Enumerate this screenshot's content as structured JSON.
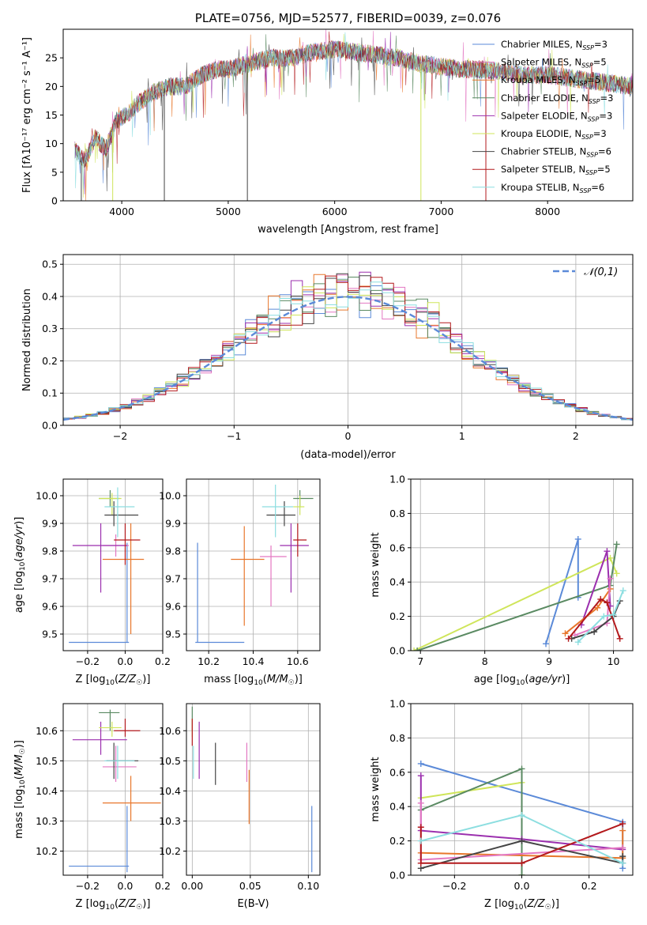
{
  "chart_data": [
    {
      "id": "spectrum",
      "type": "line",
      "title": "PLATE=0756, MJD=52577, FIBERID=0039, z=0.076",
      "xlabel": "wavelength [Angstrom, rest frame]",
      "ylabel": "Flux [fλ10⁻¹⁷ erg cm⁻² s⁻¹ A⁻¹]",
      "xlim": [
        3450,
        8800
      ],
      "ylim": [
        0,
        30
      ],
      "x_ticks": [
        "4000",
        "5000",
        "6000",
        "7000",
        "8000"
      ],
      "y_ticks": [
        "0",
        "5",
        "10",
        "15",
        "20",
        "25"
      ],
      "grid": false,
      "legend_position": "right",
      "series": [
        {
          "name": "Chabrier MILES, N_SSP=3",
          "color": "#5b8ad8"
        },
        {
          "name": "Salpeter MILES, N_SSP=5",
          "color": "#e377c2"
        },
        {
          "name": "Kroupa MILES, N_SSP=5",
          "color": "#e8772c"
        },
        {
          "name": "Chabrier ELODIE, N_SSP=3",
          "color": "#5a8a62"
        },
        {
          "name": "Salpeter ELODIE, N_SSP=3",
          "color": "#9b2fae"
        },
        {
          "name": "Kroupa ELODIE, N_SSP=3",
          "color": "#cfe55a"
        },
        {
          "name": "Chabrier STELIB, N_SSP=6",
          "color": "#444444"
        },
        {
          "name": "Salpeter STELIB, N_SSP=5",
          "color": "#b3191c"
        },
        {
          "name": "Kroupa STELIB, N_SSP=6",
          "color": "#8cdee0"
        }
      ],
      "continuum": [
        [
          3550,
          9
        ],
        [
          3650,
          7
        ],
        [
          3750,
          11
        ],
        [
          3850,
          9
        ],
        [
          3950,
          14
        ],
        [
          4050,
          15
        ],
        [
          4150,
          17
        ],
        [
          4300,
          19
        ],
        [
          4450,
          20
        ],
        [
          4600,
          20
        ],
        [
          4750,
          22
        ],
        [
          4900,
          23
        ],
        [
          5000,
          23
        ],
        [
          5200,
          24
        ],
        [
          5400,
          25
        ],
        [
          5600,
          25
        ],
        [
          5800,
          26
        ],
        [
          6000,
          26.5
        ],
        [
          6200,
          26
        ],
        [
          6400,
          25.5
        ],
        [
          6600,
          25
        ],
        [
          6800,
          24
        ],
        [
          7000,
          23.5
        ],
        [
          7200,
          23
        ],
        [
          7400,
          23
        ],
        [
          7600,
          22.5
        ],
        [
          7800,
          22
        ],
        [
          8000,
          22
        ],
        [
          8200,
          21.5
        ],
        [
          8400,
          21
        ],
        [
          8600,
          20.5
        ],
        [
          8800,
          20
        ]
      ]
    },
    {
      "id": "residuals",
      "type": "bar",
      "xlabel": "(data-model)/error",
      "ylabel": "Normed distribution",
      "xlim": [
        -2.5,
        2.5
      ],
      "ylim": [
        0,
        0.53
      ],
      "x_ticks": [
        "−2",
        "−1",
        "0",
        "1",
        "2"
      ],
      "y_ticks": [
        "0.0",
        "0.1",
        "0.2",
        "0.3",
        "0.4",
        "0.5"
      ],
      "grid": true,
      "legend_position": "top-right",
      "reference_label": "𝒩(0,1)",
      "reference_color": "#5b8ad8"
    },
    {
      "id": "age_vs_Z",
      "type": "scatter",
      "xlabel": "Z [log₁₀(Z/Z☉)]",
      "ylabel": "age  [log₁₀(age/yr)]",
      "xlim": [
        -0.33,
        0.2
      ],
      "ylim": [
        9.44,
        10.06
      ],
      "x_ticks": [
        "−0.2",
        "0.0",
        "0.2"
      ],
      "y_ticks": [
        "9.5",
        "9.6",
        "9.7",
        "9.8",
        "9.9",
        "10.0"
      ],
      "points": [
        {
          "c": "#5b8ad8",
          "x": 0.01,
          "y": 9.47,
          "xl": -0.3,
          "xh": 0.02,
          "yl": 9.47,
          "yh": 9.83
        },
        {
          "c": "#e377c2",
          "x": -0.05,
          "y": 9.82,
          "xl": -0.12,
          "xh": 0.02,
          "yl": 9.78,
          "yh": 9.86
        },
        {
          "c": "#e8772c",
          "x": 0.03,
          "y": 9.77,
          "xl": -0.12,
          "xh": 0.1,
          "yl": 9.5,
          "yh": 9.9
        },
        {
          "c": "#5a8a62",
          "x": -0.08,
          "y": 9.99,
          "xl": -0.14,
          "xh": -0.03,
          "yl": 9.96,
          "yh": 10.02
        },
        {
          "c": "#9b2fae",
          "x": -0.13,
          "y": 9.82,
          "xl": -0.28,
          "xh": 0.01,
          "yl": 9.65,
          "yh": 9.9
        },
        {
          "c": "#cfe55a",
          "x": -0.07,
          "y": 9.99,
          "xl": -0.14,
          "xh": -0.02,
          "yl": 9.93,
          "yh": 10.01
        },
        {
          "c": "#444444",
          "x": -0.06,
          "y": 9.93,
          "xl": -0.11,
          "xh": 0.07,
          "yl": 9.89,
          "yh": 9.98
        },
        {
          "c": "#b3191c",
          "x": 0.0,
          "y": 9.84,
          "xl": -0.06,
          "xh": 0.08,
          "yl": 9.75,
          "yh": 9.9
        },
        {
          "c": "#8cdee0",
          "x": -0.04,
          "y": 9.96,
          "xl": -0.11,
          "xh": 0.05,
          "yl": 9.85,
          "yh": 10.03
        }
      ]
    },
    {
      "id": "age_vs_mass",
      "type": "scatter",
      "xlabel": "mass [log₁₀(M/M☉)]",
      "ylabel": "",
      "xlim": [
        10.1,
        10.7
      ],
      "ylim": [
        9.44,
        10.06
      ],
      "x_ticks": [
        "10.2",
        "10.4",
        "10.6"
      ],
      "y_ticks": [
        "9.5",
        "9.6",
        "9.7",
        "9.8",
        "9.9",
        "10.0"
      ],
      "points": [
        {
          "c": "#5b8ad8",
          "x": 10.15,
          "y": 9.47,
          "xl": 10.14,
          "xh": 10.36,
          "yl": 9.47,
          "yh": 9.83
        },
        {
          "c": "#e377c2",
          "x": 10.48,
          "y": 9.78,
          "xl": 10.43,
          "xh": 10.55,
          "yl": 9.6,
          "yh": 9.82
        },
        {
          "c": "#e8772c",
          "x": 10.36,
          "y": 9.77,
          "xl": 10.3,
          "xh": 10.45,
          "yl": 9.53,
          "yh": 9.89
        },
        {
          "c": "#5a8a62",
          "x": 10.61,
          "y": 9.99,
          "xl": 10.58,
          "xh": 10.67,
          "yl": 9.96,
          "yh": 10.02
        },
        {
          "c": "#9b2fae",
          "x": 10.57,
          "y": 9.82,
          "xl": 10.52,
          "xh": 10.65,
          "yl": 9.65,
          "yh": 9.9
        },
        {
          "c": "#cfe55a",
          "x": 10.61,
          "y": 9.96,
          "xl": 10.58,
          "xh": 10.63,
          "yl": 9.93,
          "yh": 10.0
        },
        {
          "c": "#444444",
          "x": 10.54,
          "y": 9.93,
          "xl": 10.46,
          "xh": 10.59,
          "yl": 9.89,
          "yh": 9.98
        },
        {
          "c": "#b3191c",
          "x": 10.6,
          "y": 9.84,
          "xl": 10.58,
          "xh": 10.64,
          "yl": 9.78,
          "yh": 9.9
        },
        {
          "c": "#8cdee0",
          "x": 10.5,
          "y": 9.96,
          "xl": 10.44,
          "xh": 10.58,
          "yl": 9.85,
          "yh": 10.04
        }
      ]
    },
    {
      "id": "weight_vs_age",
      "type": "line",
      "xlabel": "age  [log₁₀(age/yr)]",
      "ylabel": "mass weight",
      "xlim": [
        6.85,
        10.3
      ],
      "ylim": [
        0,
        1
      ],
      "x_ticks": [
        "7",
        "8",
        "9",
        "10"
      ],
      "y_ticks": [
        "0.0",
        "0.2",
        "0.4",
        "0.6",
        "0.8",
        "1.0"
      ],
      "grid": true,
      "series": [
        {
          "c": "#5b8ad8",
          "x": [
            8.95,
            9.45,
            9.45
          ],
          "y": [
            0.04,
            0.65,
            0.31
          ]
        },
        {
          "c": "#cfe55a",
          "x": [
            6.9,
            9.95,
            10.05
          ],
          "y": [
            0.0,
            0.54,
            0.45
          ]
        },
        {
          "c": "#5a8a62",
          "x": [
            6.95,
            9.95,
            10.05
          ],
          "y": [
            0.0,
            0.38,
            0.62
          ]
        },
        {
          "c": "#9b2fae",
          "x": [
            9.5,
            9.9,
            9.95
          ],
          "y": [
            0.15,
            0.58,
            0.26
          ]
        },
        {
          "c": "#e8772c",
          "x": [
            9.25,
            9.75,
            9.95
          ],
          "y": [
            0.1,
            0.25,
            0.36
          ]
        },
        {
          "c": "#e377c2",
          "x": [
            9.4,
            9.9,
            9.95
          ],
          "y": [
            0.09,
            0.16,
            0.42
          ]
        },
        {
          "c": "#444444",
          "x": [
            9.35,
            9.7,
            10.0,
            10.1
          ],
          "y": [
            0.07,
            0.11,
            0.2,
            0.29
          ]
        },
        {
          "c": "#b3191c",
          "x": [
            9.3,
            9.8,
            9.9,
            10.1
          ],
          "y": [
            0.07,
            0.3,
            0.28,
            0.07
          ]
        },
        {
          "c": "#8cdee0",
          "x": [
            9.45,
            9.85,
            10.0,
            10.15
          ],
          "y": [
            0.05,
            0.2,
            0.21,
            0.35
          ]
        }
      ]
    },
    {
      "id": "mass_vs_Z",
      "type": "scatter",
      "xlabel": "Z [log₁₀(Z/Z☉)]",
      "ylabel": "mass [log₁₀(M/M☉)]",
      "xlim": [
        -0.33,
        0.2
      ],
      "ylim": [
        10.12,
        10.69
      ],
      "x_ticks": [
        "−0.2",
        "0.0",
        "0.2"
      ],
      "y_ticks": [
        "10.2",
        "10.3",
        "10.4",
        "10.5",
        "10.6"
      ],
      "points": [
        {
          "c": "#5b8ad8",
          "x": 0.01,
          "y": 10.15,
          "xl": -0.3,
          "xh": 0.02,
          "yl": 10.13,
          "yh": 10.35
        },
        {
          "c": "#e377c2",
          "x": -0.05,
          "y": 10.48,
          "xl": -0.12,
          "xh": 0.06,
          "yl": 10.43,
          "yh": 10.55
        },
        {
          "c": "#e8772c",
          "x": 0.03,
          "y": 10.36,
          "xl": -0.12,
          "xh": 0.19,
          "yl": 10.3,
          "yh": 10.45
        },
        {
          "c": "#5a8a62",
          "x": -0.08,
          "y": 10.66,
          "xl": -0.14,
          "xh": -0.03,
          "yl": 10.6,
          "yh": 10.67
        },
        {
          "c": "#9b2fae",
          "x": -0.13,
          "y": 10.57,
          "xl": -0.28,
          "xh": 0.01,
          "yl": 10.52,
          "yh": 10.63
        },
        {
          "c": "#cfe55a",
          "x": -0.07,
          "y": 10.61,
          "xl": -0.14,
          "xh": -0.02,
          "yl": 10.58,
          "yh": 10.63
        },
        {
          "c": "#444444",
          "x": -0.06,
          "y": 10.5,
          "xl": -0.1,
          "xh": 0.07,
          "yl": 10.44,
          "yh": 10.56
        },
        {
          "c": "#b3191c",
          "x": 0.0,
          "y": 10.6,
          "xl": -0.06,
          "xh": 0.08,
          "yl": 10.58,
          "yh": 10.64
        },
        {
          "c": "#8cdee0",
          "x": -0.04,
          "y": 10.5,
          "xl": -0.11,
          "xh": 0.05,
          "yl": 10.44,
          "yh": 10.55
        }
      ]
    },
    {
      "id": "mass_vs_ebv",
      "type": "scatter",
      "xlabel": "E(B-V)",
      "ylabel": "",
      "xlim": [
        -0.005,
        0.11
      ],
      "ylim": [
        10.12,
        10.69
      ],
      "x_ticks": [
        "0.00",
        "0.05",
        "0.10"
      ],
      "y_ticks": [
        "10.2",
        "10.3",
        "10.4",
        "10.5",
        "10.6"
      ],
      "points": [
        {
          "c": "#5b8ad8",
          "x": 0.103,
          "y": 10.15,
          "yl": 10.13,
          "yh": 10.35
        },
        {
          "c": "#e377c2",
          "x": 0.047,
          "y": 10.48,
          "yl": 10.43,
          "yh": 10.56
        },
        {
          "c": "#e8772c",
          "x": 0.049,
          "y": 10.36,
          "yl": 10.29,
          "yh": 10.47
        },
        {
          "c": "#5a8a62",
          "x": 0.0,
          "y": 10.66,
          "yl": 10.6,
          "yh": 10.68
        },
        {
          "c": "#9b2fae",
          "x": 0.006,
          "y": 10.57,
          "yl": 10.44,
          "yh": 10.63
        },
        {
          "c": "#cfe55a",
          "x": 0.0,
          "y": 10.61,
          "yl": 10.58,
          "yh": 10.64
        },
        {
          "c": "#444444",
          "x": 0.02,
          "y": 10.5,
          "yl": 10.42,
          "yh": 10.56
        },
        {
          "c": "#b3191c",
          "x": 0.0,
          "y": 10.6,
          "yl": 10.55,
          "yh": 10.64
        },
        {
          "c": "#8cdee0",
          "x": 0.001,
          "y": 10.5,
          "yl": 10.44,
          "yh": 10.55
        }
      ]
    },
    {
      "id": "weight_vs_Z",
      "type": "line",
      "xlabel": "Z [log₁₀(Z/Z☉)]",
      "ylabel": "mass weight",
      "xlim": [
        -0.33,
        0.33
      ],
      "ylim": [
        0,
        1
      ],
      "x_ticks": [
        "−0.2",
        "0.0",
        "0.2"
      ],
      "y_ticks": [
        "0.0",
        "0.2",
        "0.4",
        "0.6",
        "0.8",
        "1.0"
      ],
      "grid": true,
      "series": [
        {
          "c": "#5b8ad8",
          "x": [
            -0.3,
            0.3,
            0.3
          ],
          "y": [
            0.65,
            0.31,
            0.04
          ]
        },
        {
          "c": "#cfe55a",
          "x": [
            -0.3,
            0.0,
            0.0
          ],
          "y": [
            0.45,
            0.54,
            0.0
          ]
        },
        {
          "c": "#5a8a62",
          "x": [
            -0.3,
            0.0,
            0.0
          ],
          "y": [
            0.38,
            0.62,
            0.0
          ]
        },
        {
          "c": "#9b2fae",
          "x": [
            -0.3,
            -0.3,
            0.0,
            0.3
          ],
          "y": [
            0.58,
            0.26,
            0.21,
            0.15
          ]
        },
        {
          "c": "#e8772c",
          "x": [
            -0.3,
            0.3,
            0.3
          ],
          "y": [
            0.13,
            0.1,
            0.26
          ]
        },
        {
          "c": "#e377c2",
          "x": [
            -0.3,
            -0.3,
            0.3
          ],
          "y": [
            0.42,
            0.09,
            0.16
          ]
        },
        {
          "c": "#444444",
          "x": [
            -0.3,
            0.0,
            0.3,
            0.3
          ],
          "y": [
            0.04,
            0.2,
            0.07,
            0.11
          ]
        },
        {
          "c": "#b3191c",
          "x": [
            -0.3,
            -0.3,
            0.0,
            0.3
          ],
          "y": [
            0.28,
            0.07,
            0.07,
            0.3
          ]
        },
        {
          "c": "#8cdee0",
          "x": [
            -0.3,
            0.0,
            0.3
          ],
          "y": [
            0.2,
            0.35,
            0.07
          ]
        }
      ]
    }
  ]
}
